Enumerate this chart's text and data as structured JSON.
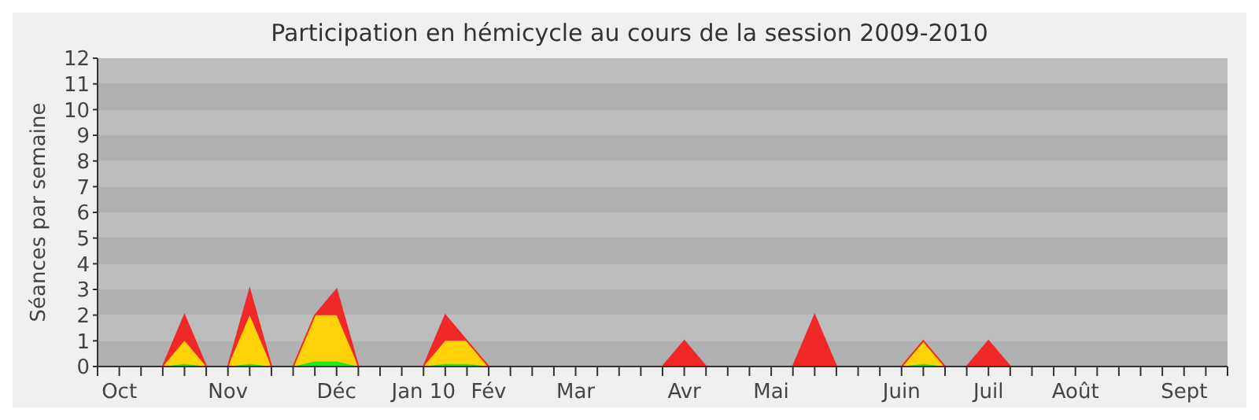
{
  "chart_data": {
    "type": "area",
    "title": "Participation en hémicycle au cours de la session 2009-2010",
    "ylabel": "Séances par semaine",
    "stacked": true,
    "categories": [
      null,
      "Oct",
      null,
      null,
      null,
      null,
      "Nov",
      null,
      null,
      null,
      null,
      "Déc",
      null,
      null,
      null,
      "Jan 10",
      null,
      null,
      "Fév",
      null,
      null,
      null,
      "Mar",
      null,
      null,
      null,
      null,
      "Avr",
      null,
      null,
      null,
      "Mai",
      null,
      null,
      null,
      null,
      null,
      "Juin",
      null,
      null,
      null,
      "Juil",
      null,
      null,
      null,
      "Août",
      null,
      null,
      null,
      null,
      "Sept",
      null,
      null
    ],
    "series": [
      {
        "color": "#22e822",
        "values": [
          0,
          0,
          0,
          0,
          0.1,
          0,
          0,
          0.1,
          0,
          0,
          0.2,
          0.2,
          0,
          0,
          0,
          0,
          0.1,
          0.1,
          0,
          0,
          0,
          0,
          0,
          0,
          0,
          0,
          0,
          0,
          0,
          0,
          0,
          0,
          0,
          0,
          0,
          0,
          0,
          0,
          0.1,
          0,
          0,
          0,
          0,
          0,
          0,
          0,
          0,
          0,
          0,
          0,
          0,
          0,
          0
        ]
      },
      {
        "color": "#ffd20a",
        "values": [
          0,
          0,
          0,
          0,
          0.9,
          0,
          0,
          1.9,
          0,
          0,
          1.8,
          1.8,
          0,
          0,
          0,
          0,
          0.9,
          0.9,
          0,
          0,
          0,
          0,
          0,
          0,
          0,
          0,
          0,
          0,
          0,
          0,
          0,
          0,
          0,
          0,
          0,
          0,
          0,
          0,
          0.9,
          0,
          0,
          0,
          0,
          0,
          0,
          0,
          0,
          0,
          0,
          0,
          0,
          0,
          0
        ]
      },
      {
        "color": "#f02828",
        "values": [
          0,
          0,
          0,
          0,
          1,
          0,
          0,
          1,
          0,
          0,
          0,
          1,
          0,
          0,
          0,
          0,
          1,
          0,
          0,
          0,
          0,
          0,
          0,
          0,
          0,
          0,
          0,
          1,
          0,
          0,
          0,
          0,
          0,
          2,
          0,
          0,
          0,
          0,
          0,
          0,
          0,
          1,
          0,
          0,
          0,
          0,
          0,
          0,
          0,
          0,
          0,
          0,
          0
        ]
      }
    ],
    "ylim": [
      0,
      12
    ],
    "yticks": [
      0,
      1,
      2,
      3,
      4,
      5,
      6,
      7,
      8,
      9,
      10,
      11,
      12
    ]
  }
}
